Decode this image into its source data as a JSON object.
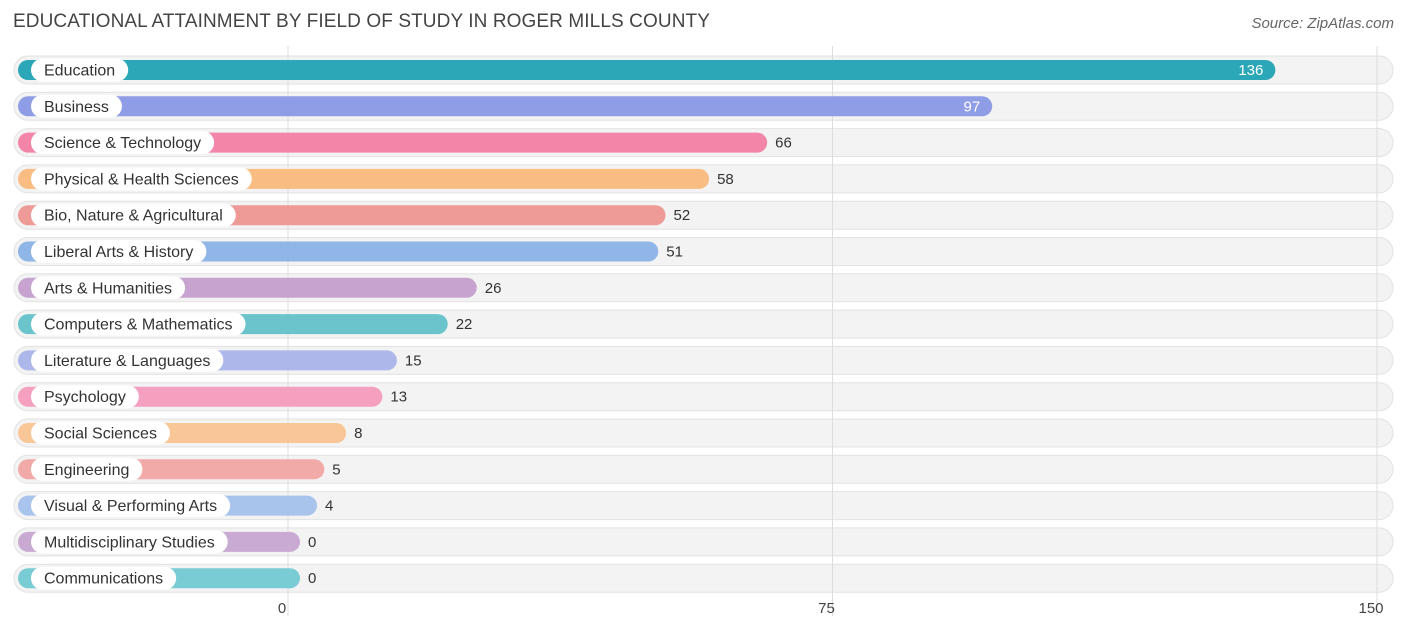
{
  "header": {
    "title": "EDUCATIONAL ATTAINMENT BY FIELD OF STUDY IN ROGER MILLS COUNTY",
    "source": "Source: ZipAtlas.com"
  },
  "chart_data": {
    "type": "bar",
    "orientation": "horizontal",
    "categories": [
      "Education",
      "Business",
      "Science & Technology",
      "Physical & Health Sciences",
      "Bio, Nature & Agricultural",
      "Liberal Arts & History",
      "Arts & Humanities",
      "Computers & Mathematics",
      "Literature & Languages",
      "Psychology",
      "Social Sciences",
      "Engineering",
      "Visual & Performing Arts",
      "Multidisciplinary Studies",
      "Communications"
    ],
    "values": [
      136,
      97,
      66,
      58,
      52,
      51,
      26,
      22,
      15,
      13,
      8,
      5,
      4,
      0,
      0
    ],
    "colors": [
      "#2ba7b8",
      "#8f9de6",
      "#f285a8",
      "#f9bc82",
      "#ee9a97",
      "#8fb6e6",
      "#c6a4cf",
      "#6bc4cc",
      "#adb7ea",
      "#f5a0bf",
      "#f9c698",
      "#f2aaa9",
      "#a8c4ec",
      "#c9aad3",
      "#79cbd4"
    ],
    "xlim": [
      0,
      150
    ],
    "xticks": [
      0,
      75,
      150
    ],
    "grid": true,
    "xlabel": "",
    "ylabel": ""
  }
}
